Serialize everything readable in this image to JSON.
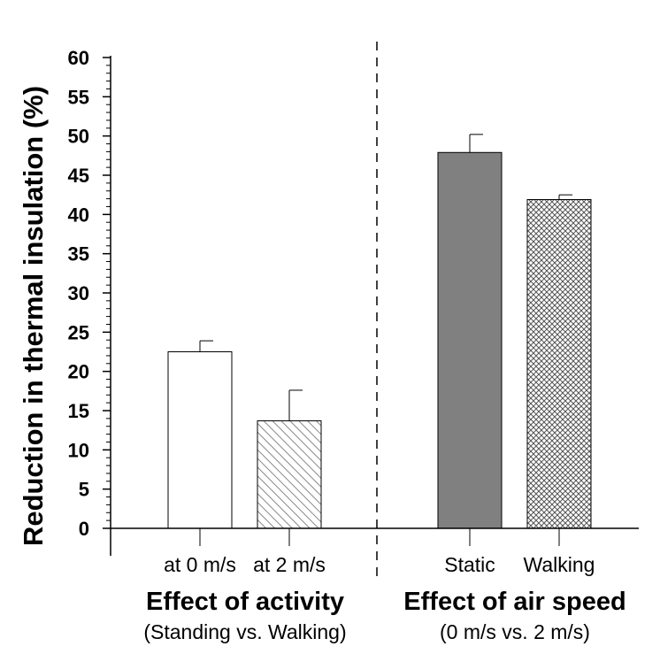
{
  "chart_data": {
    "type": "bar",
    "ylabel": "Reduction in thermal insulation (%)",
    "ylim": [
      0,
      60
    ],
    "y_major_ticks": [
      0,
      5,
      10,
      15,
      20,
      25,
      30,
      35,
      40,
      45,
      50,
      55,
      60
    ],
    "y_minor_step": 1,
    "grid": false,
    "categories": [
      "at 0 m/s",
      "at 2 m/s",
      "Static",
      "Walking"
    ],
    "values": [
      22.5,
      13.7,
      47.9,
      41.9
    ],
    "error_upper": [
      1.4,
      3.9,
      2.3,
      0.6
    ],
    "fills": [
      "white",
      "diagonal-hatch",
      "solid-gray",
      "crosshatch"
    ],
    "colors": {
      "solid_gray": "#808080",
      "bar_edge": "#000000",
      "hatch": "#888888"
    },
    "groups": [
      {
        "title": "Effect of activity",
        "subtitle": "(Standing vs. Walking)",
        "categories": [
          "at 0 m/s",
          "at 2 m/s"
        ]
      },
      {
        "title": "Effect of air speed",
        "subtitle": "(0 m/s vs. 2 m/s)",
        "categories": [
          "Static",
          "Walking"
        ]
      }
    ],
    "group_divider": "dashed"
  }
}
